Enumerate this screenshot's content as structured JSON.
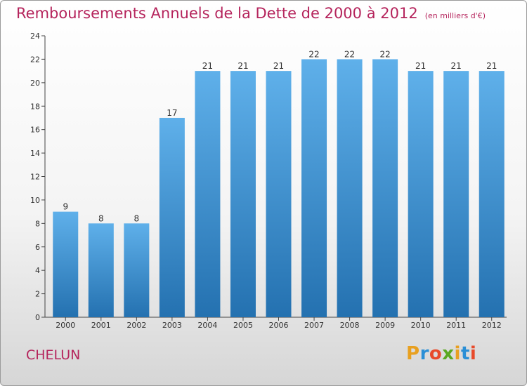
{
  "header": {
    "title": "Remboursements Annuels de la Dette de 2000 à 2012",
    "subtitle": "(en milliers d'€)"
  },
  "footer": {
    "commune": "CHELUN",
    "logo_text": "Proxiti",
    "logo_colors": [
      "#e8a020",
      "#2a8fd6",
      "#e84a2a",
      "#5aa820",
      "#e8a020",
      "#2a8fd6",
      "#e84a2a"
    ]
  },
  "colors": {
    "bar_light": "#5fb0ea",
    "bar_dark": "#2471b0",
    "title": "#b5245c",
    "axis_text": "#333333"
  },
  "chart_data": {
    "type": "bar",
    "title": "Remboursements Annuels de la Dette de 2000 à 2012",
    "subtitle": "(en milliers d'€)",
    "categories": [
      "2000",
      "2001",
      "2002",
      "2003",
      "2004",
      "2005",
      "2006",
      "2007",
      "2008",
      "2009",
      "2010",
      "2011",
      "2012"
    ],
    "values": [
      9,
      8,
      8,
      17,
      21,
      21,
      21,
      22,
      22,
      22,
      21,
      21,
      21
    ],
    "data_labels": [
      "9",
      "8",
      "8",
      "17",
      "21",
      "21",
      "21",
      "22",
      "22",
      "22",
      "21",
      "21",
      "21"
    ],
    "yticks": [
      "0",
      "2",
      "4",
      "6",
      "8",
      "10",
      "12",
      "14",
      "16",
      "18",
      "20",
      "22",
      "24"
    ],
    "ylim": [
      0,
      24
    ],
    "xlabel": "",
    "ylabel": "",
    "grid": false,
    "legend": "none"
  }
}
